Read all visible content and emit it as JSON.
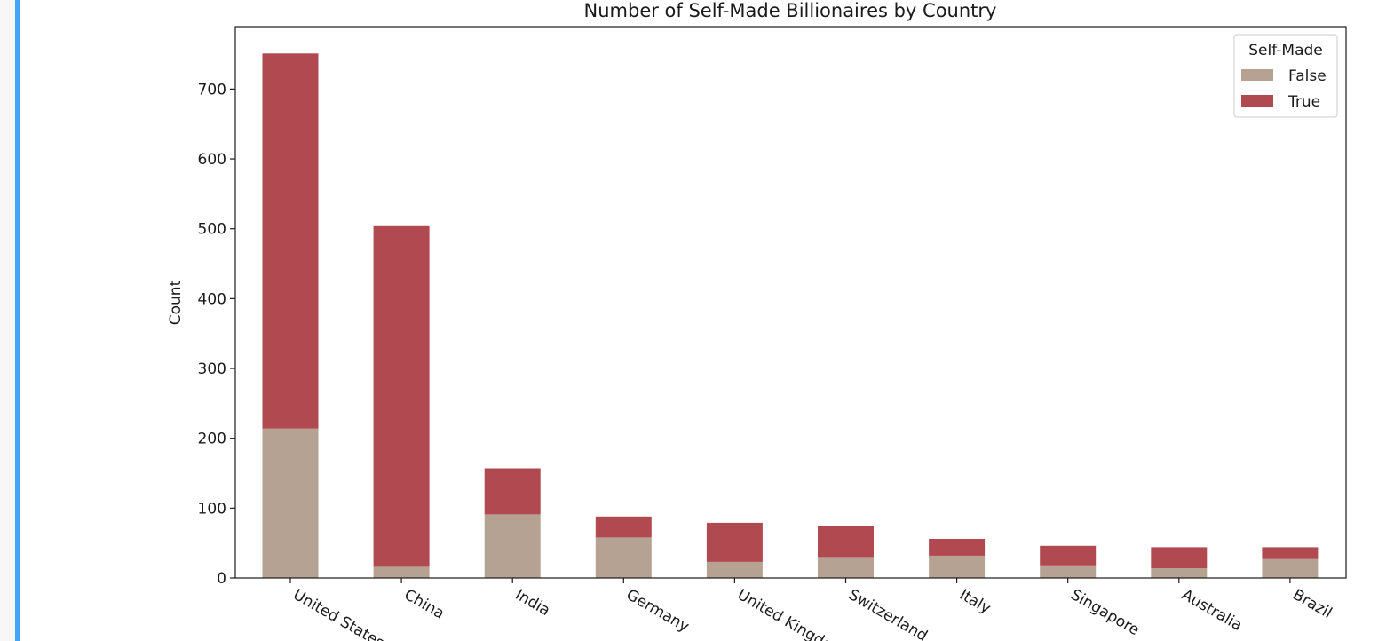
{
  "chart_data": {
    "type": "bar",
    "stacked": true,
    "title": "Number of Self-Made Billionaires by Country",
    "xlabel": "",
    "ylabel": "Count",
    "ylim": [
      0,
      790
    ],
    "yticks": [
      0,
      100,
      200,
      300,
      400,
      500,
      600,
      700
    ],
    "grid": false,
    "legend_position": "top-right",
    "legend_title": "Self-Made",
    "categories": [
      "United States",
      "China",
      "India",
      "Germany",
      "United Kingdom",
      "Switzerland",
      "Italy",
      "Singapore",
      "Australia",
      "Brazil"
    ],
    "series": [
      {
        "name": "False",
        "color": "#b6a292",
        "values": [
          214,
          16,
          91,
          58,
          23,
          30,
          32,
          18,
          14,
          27
        ]
      },
      {
        "name": "True",
        "color": "#b04950",
        "values": [
          537,
          489,
          66,
          30,
          56,
          44,
          24,
          28,
          30,
          17
        ]
      }
    ]
  },
  "colors": {
    "accent_border": "#42a5f5",
    "axis": "#1a1a1a",
    "legend_border": "#cccccc"
  }
}
